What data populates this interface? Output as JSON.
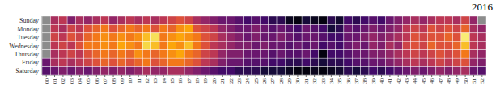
{
  "chart_data": {
    "type": "heatmap",
    "title": "2016",
    "color": "inferno",
    "categories": [
      "00",
      "01",
      "02",
      "03",
      "04",
      "05",
      "06",
      "07",
      "08",
      "09",
      "10",
      "11",
      "12",
      "13",
      "14",
      "15",
      "16",
      "17",
      "18",
      "19",
      "20",
      "21",
      "22",
      "23",
      "24",
      "25",
      "26",
      "27",
      "28",
      "29",
      "30",
      "31",
      "32",
      "33",
      "34",
      "35",
      "36",
      "37",
      "38",
      "39",
      "40",
      "41",
      "42",
      "43",
      "44",
      "45",
      "46",
      "47",
      "48",
      "49",
      "50",
      "51",
      "52"
    ],
    "rows": [
      "Sunday",
      "Monday",
      "Tuesday",
      "Wednesday",
      "Thursday",
      "Friday",
      "Saturday"
    ],
    "cells": [
      [
        null,
        0.45,
        0.5,
        0.35,
        0.45,
        0.4,
        0.45,
        0.5,
        0.4,
        0.45,
        0.5,
        0.45,
        0.5,
        0.45,
        0.5,
        0.55,
        0.6,
        0.55,
        0.45,
        0.4,
        0.35,
        0.3,
        0.3,
        0.25,
        0.2,
        0.25,
        0.2,
        0.15,
        0.15,
        0.05,
        0.02,
        0.1,
        0.05,
        0.02,
        0.15,
        0.08,
        0.2,
        0.15,
        0.2,
        0.25,
        0.2,
        0.3,
        0.35,
        0.4,
        0.45,
        0.4,
        0.45,
        0.5,
        0.5,
        0.45,
        0.55,
        0.4,
        null
      ],
      [
        null,
        0.5,
        0.45,
        0.55,
        0.5,
        0.6,
        0.65,
        0.7,
        0.6,
        0.65,
        0.7,
        0.65,
        0.7,
        0.6,
        0.7,
        0.65,
        0.75,
        0.8,
        0.6,
        0.55,
        0.5,
        0.4,
        0.35,
        0.3,
        0.3,
        0.35,
        0.3,
        0.25,
        0.3,
        0.25,
        0.2,
        0.3,
        0.25,
        0.2,
        0.1,
        0.15,
        0.3,
        0.25,
        0.3,
        0.35,
        0.3,
        0.35,
        0.4,
        0.5,
        0.55,
        0.5,
        0.6,
        0.55,
        0.6,
        0.55,
        0.65,
        0.45,
        0.4
      ],
      [
        null,
        0.55,
        0.5,
        0.6,
        0.55,
        0.65,
        0.7,
        0.75,
        0.7,
        0.75,
        0.7,
        0.75,
        0.85,
        0.92,
        0.7,
        0.75,
        0.8,
        0.75,
        0.7,
        0.6,
        0.55,
        0.45,
        0.4,
        0.35,
        0.3,
        0.35,
        0.3,
        0.3,
        0.35,
        0.3,
        0.25,
        0.3,
        0.3,
        0.25,
        0.2,
        0.2,
        0.3,
        0.3,
        0.35,
        0.4,
        0.35,
        0.4,
        0.45,
        0.5,
        0.6,
        0.55,
        0.6,
        0.6,
        0.65,
        0.6,
        0.95,
        0.5,
        0.45
      ],
      [
        null,
        0.5,
        0.55,
        0.5,
        0.6,
        0.7,
        0.7,
        0.75,
        0.7,
        0.8,
        0.75,
        0.7,
        0.9,
        0.85,
        0.7,
        0.8,
        0.75,
        0.85,
        0.7,
        0.6,
        0.5,
        0.45,
        0.4,
        0.35,
        0.35,
        0.3,
        0.35,
        0.3,
        0.3,
        0.25,
        0.3,
        0.25,
        0.3,
        0.2,
        0.25,
        0.2,
        0.3,
        0.35,
        0.3,
        0.4,
        0.35,
        0.45,
        0.4,
        0.55,
        0.6,
        0.55,
        0.65,
        0.6,
        0.6,
        0.65,
        0.85,
        0.5,
        0.45
      ],
      [
        null,
        0.45,
        0.5,
        0.55,
        0.5,
        0.6,
        0.65,
        0.7,
        0.65,
        0.7,
        0.65,
        0.75,
        0.7,
        0.65,
        0.7,
        0.75,
        0.8,
        0.7,
        0.65,
        0.55,
        0.5,
        0.4,
        0.35,
        0.35,
        0.3,
        0.3,
        0.3,
        0.25,
        0.3,
        0.25,
        0.25,
        0.3,
        0.2,
        0.02,
        0.2,
        0.2,
        0.25,
        0.3,
        0.3,
        0.35,
        0.35,
        0.4,
        0.45,
        0.5,
        0.55,
        0.5,
        0.55,
        0.6,
        0.55,
        0.6,
        0.7,
        0.45,
        0.4
      ],
      [
        0.3,
        0.45,
        0.5,
        0.45,
        0.5,
        0.55,
        0.6,
        0.65,
        0.6,
        0.65,
        0.6,
        0.65,
        0.7,
        0.6,
        0.65,
        0.7,
        0.7,
        0.65,
        0.6,
        0.5,
        0.45,
        0.35,
        0.3,
        0.3,
        0.25,
        0.25,
        0.25,
        0.2,
        0.2,
        0.15,
        0.15,
        0.2,
        0.15,
        0.1,
        0.15,
        0.15,
        0.2,
        0.25,
        0.25,
        0.3,
        0.3,
        0.35,
        0.4,
        0.45,
        0.5,
        0.45,
        0.5,
        0.55,
        0.5,
        0.55,
        0.6,
        0.4,
        0.35
      ],
      [
        0.25,
        0.3,
        0.35,
        0.3,
        0.35,
        0.3,
        0.35,
        0.4,
        0.35,
        0.4,
        0.35,
        0.4,
        0.45,
        0.4,
        0.4,
        0.45,
        0.45,
        0.4,
        0.35,
        0.3,
        0.25,
        0.2,
        0.2,
        0.15,
        0.15,
        0.15,
        0.1,
        0.1,
        0.1,
        0.05,
        0.02,
        0.02,
        0.05,
        0.02,
        0.05,
        0.08,
        0.15,
        0.1,
        0.15,
        0.2,
        0.15,
        0.2,
        0.25,
        0.3,
        0.35,
        0.3,
        0.35,
        0.4,
        0.35,
        0.4,
        0.45,
        0.3,
        0.25
      ]
    ]
  }
}
